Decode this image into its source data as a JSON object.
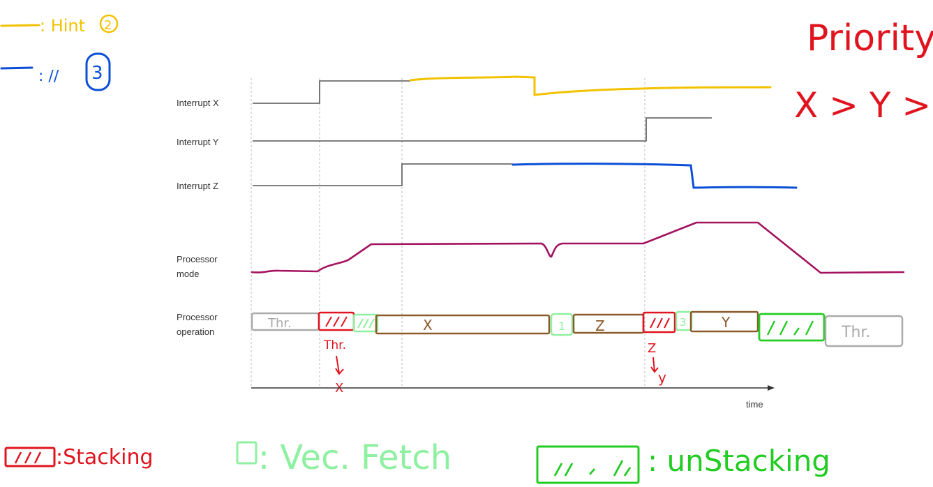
{
  "signals": {
    "interrupt_x": "Interrupt X",
    "interrupt_y": "Interrupt Y",
    "interrupt_z": "Interrupt Z",
    "processor_mode_line1": "Processor",
    "processor_mode_line2": "mode",
    "processor_operation_line1": "Processor",
    "processor_operation_line2": "operation",
    "time_axis": "time"
  },
  "operation_blocks": {
    "thread_start": "Thr.",
    "exception_x": "X",
    "exception_z": "Z",
    "exception_y": "Y",
    "thread_end": "Thr.",
    "vec_fetch_1": "1",
    "vec_fetch_2": "3"
  },
  "annotations": {
    "transition_1_from": "Thr.",
    "transition_1_to": "X",
    "transition_2_from": "Z",
    "transition_2_to": "y"
  },
  "legend": {
    "hint2_text": ": Hint",
    "hint2_number": "2",
    "hint3_text": ": ∕∕",
    "hint3_number": "3",
    "stacking": ":Stacking",
    "vec_fetch": ": Vec. Fetch",
    "unstacking": ": unStacking",
    "priority_title": "Priority:",
    "priority_order": "X > Y > Z"
  },
  "colors": {
    "yellow": "#f2c200",
    "blue": "#0a4fd6",
    "red": "#e0141e",
    "light_green": "#8ef0a0",
    "green": "#22cc22",
    "brown": "#8b5a2b",
    "magenta": "#a3125e",
    "gray": "#aaaaaa"
  }
}
